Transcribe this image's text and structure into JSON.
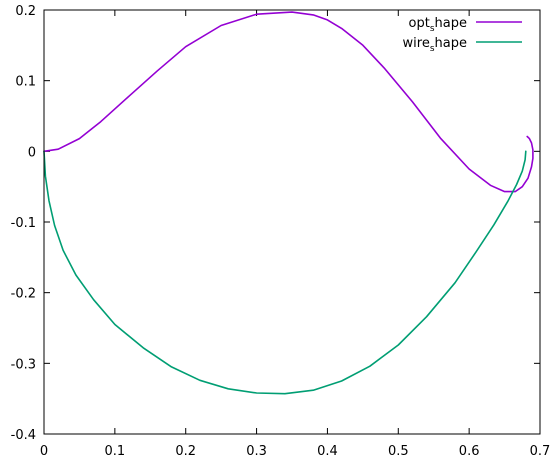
{
  "chart_data": {
    "type": "line",
    "title": "",
    "xlabel": "",
    "ylabel": "",
    "xlim": [
      0,
      0.7
    ],
    "ylim": [
      -0.4,
      0.2
    ],
    "xticks": [
      "0",
      "0.1",
      "0.2",
      "0.3",
      "0.4",
      "0.5",
      "0.6",
      "0.7"
    ],
    "yticks": [
      "0.2",
      "0.1",
      "0",
      "-0.1",
      "-0.2",
      "-0.3",
      "-0.4"
    ],
    "grid": false,
    "legend_position": "top-right",
    "series": [
      {
        "name_main": "opt",
        "name_sub": "s",
        "name_rest": "hape",
        "color": "#9400D3",
        "x": [
          0,
          0.02,
          0.05,
          0.08,
          0.12,
          0.16,
          0.2,
          0.25,
          0.3,
          0.35,
          0.38,
          0.4,
          0.42,
          0.45,
          0.48,
          0.52,
          0.56,
          0.6,
          0.63,
          0.65,
          0.665,
          0.675,
          0.683,
          0.688,
          0.69,
          0.69,
          0.688,
          0.685,
          0.682
        ],
        "y": [
          0,
          0.003,
          0.018,
          0.042,
          0.078,
          0.114,
          0.148,
          0.178,
          0.194,
          0.197,
          0.193,
          0.186,
          0.174,
          0.15,
          0.118,
          0.07,
          0.018,
          -0.025,
          -0.048,
          -0.057,
          -0.057,
          -0.05,
          -0.038,
          -0.022,
          -0.01,
          0.002,
          0.012,
          0.018,
          0.021
        ]
      },
      {
        "name_main": "wire",
        "name_sub": "s",
        "name_rest": "hape",
        "color": "#009E73",
        "x": [
          0,
          0.002,
          0.007,
          0.015,
          0.027,
          0.045,
          0.07,
          0.1,
          0.14,
          0.18,
          0.22,
          0.26,
          0.3,
          0.34,
          0.38,
          0.42,
          0.46,
          0.5,
          0.54,
          0.58,
          0.61,
          0.635,
          0.655,
          0.667,
          0.675,
          0.679,
          0.68
        ],
        "y": [
          0,
          -0.035,
          -0.07,
          -0.105,
          -0.14,
          -0.175,
          -0.21,
          -0.245,
          -0.278,
          -0.305,
          -0.324,
          -0.336,
          -0.342,
          -0.343,
          -0.338,
          -0.325,
          -0.304,
          -0.274,
          -0.234,
          -0.186,
          -0.142,
          -0.104,
          -0.07,
          -0.047,
          -0.028,
          -0.012,
          0
        ]
      }
    ]
  }
}
